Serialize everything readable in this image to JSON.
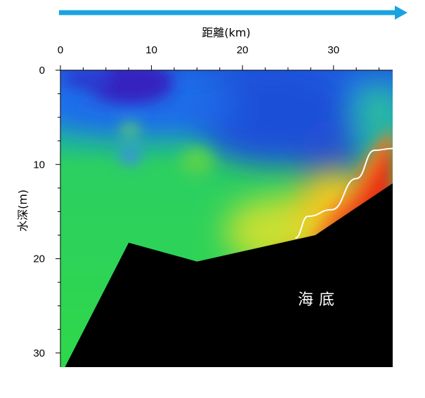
{
  "chart_data": {
    "type": "heatmap",
    "title": "",
    "xlabel": "距離(km)",
    "ylabel": "水深(m)",
    "x_axis_position": "top",
    "y_axis_inverted": true,
    "xlim": [
      0,
      36.5
    ],
    "ylim": [
      0,
      31.5
    ],
    "x_ticks": [
      0,
      10,
      20,
      30
    ],
    "y_ticks": [
      0,
      10,
      20,
      30
    ],
    "colormap": "rainbow (blue = low, red = high)",
    "grid": false,
    "legend": "none",
    "direction_arrow": "left-to-right along top",
    "seabed": {
      "label": "海底",
      "fill_color": "#000000",
      "profile": [
        {
          "x": 0.5,
          "depth": 31.5
        },
        {
          "x": 7.5,
          "depth": 18.3
        },
        {
          "x": 15.0,
          "depth": 20.3
        },
        {
          "x": 28.0,
          "depth": 17.5
        },
        {
          "x": 36.5,
          "depth": 12.0
        }
      ]
    },
    "contour_line": {
      "color": "#ffffff",
      "points": [
        {
          "x": 25.8,
          "depth": 17.8
        },
        {
          "x": 27.2,
          "depth": 15.5
        },
        {
          "x": 29.8,
          "depth": 14.8
        },
        {
          "x": 32.5,
          "depth": 11.5
        },
        {
          "x": 34.5,
          "depth": 8.5
        },
        {
          "x": 36.5,
          "depth": 8.3
        }
      ]
    },
    "field_notes": "low values (blue/purple) at surface near x=0-12 km and in a tongue down to ~13 m depth near x=28 km; mid values (green) in the water column west of 22 km; high values (yellow-orange-red) near the seabed east of 22 km"
  },
  "colors": {
    "arrow": "#1aa3e0",
    "seabed": "#000000",
    "contour": "#ffffff"
  }
}
